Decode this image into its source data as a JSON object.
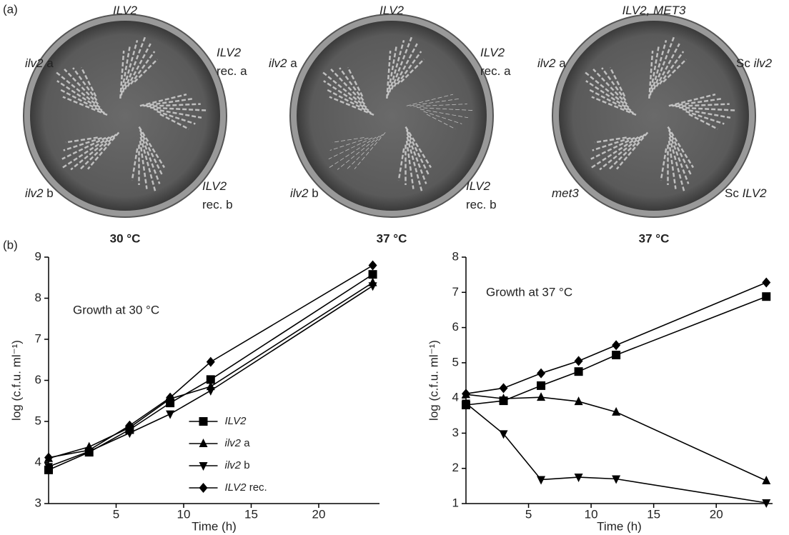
{
  "panel_a": {
    "label": "(a)",
    "plates": [
      {
        "labels": [
          {
            "lines": [
              "ILV2"
            ]
          },
          {
            "lines": [
              "ilv2 a"
            ]
          },
          {
            "lines": [
              "ILV2",
              "rec. a"
            ]
          },
          {
            "lines": [
              "ilv2 b"
            ]
          },
          {
            "lines": [
              "ILV2",
              "rec. b"
            ]
          }
        ],
        "temperature": "30 °C"
      },
      {
        "labels": [
          {
            "lines": [
              "ILV2"
            ]
          },
          {
            "lines": [
              "ilv2 a"
            ]
          },
          {
            "lines": [
              "ILV2",
              "rec. a"
            ]
          },
          {
            "lines": [
              "ilv2 b"
            ]
          },
          {
            "lines": [
              "ILV2",
              "rec. b"
            ]
          }
        ],
        "temperature": "37 °C"
      },
      {
        "labels": [
          {
            "lines": [
              "ILV2, MET3"
            ]
          },
          {
            "lines": [
              "ilv2 a"
            ]
          },
          {
            "lines": [
              "Sc ilv2"
            ]
          },
          {
            "lines": [
              "met3"
            ]
          },
          {
            "lines": [
              "Sc ILV2"
            ]
          }
        ],
        "temperature": "37 °C"
      }
    ]
  },
  "panel_b": {
    "label": "(b)"
  },
  "chart_data": [
    {
      "type": "line",
      "annotation": "Growth at 30 °C",
      "x_label": "Time (h)",
      "y_label": "log (c.f.u. ml⁻¹)",
      "x": [
        0,
        3,
        6,
        9,
        12,
        24
      ],
      "xlim": [
        0,
        24.5
      ],
      "xticks": [
        5,
        10,
        15,
        20
      ],
      "ylim": [
        3,
        9
      ],
      "yticks": [
        3,
        4,
        5,
        6,
        7,
        8,
        9
      ],
      "legend": "center",
      "series": [
        {
          "name": "ILV2",
          "color": "#000000",
          "marker": "square",
          "values": [
            3.82,
            4.25,
            4.8,
            5.45,
            6.02,
            8.58
          ]
        },
        {
          "name": "ilv2 a",
          "color": "#000000",
          "marker": "triangle",
          "values": [
            4.1,
            4.38,
            4.85,
            5.55,
            5.85,
            8.38
          ]
        },
        {
          "name": "ilv2 b",
          "color": "#000000",
          "marker": "triangle-down",
          "values": [
            3.9,
            4.27,
            4.72,
            5.18,
            5.75,
            8.3
          ]
        },
        {
          "name": "ILV2 rec.",
          "color": "#000000",
          "marker": "diamond",
          "values": [
            4.12,
            4.3,
            4.9,
            5.58,
            6.45,
            8.8
          ]
        }
      ]
    },
    {
      "type": "line",
      "annotation": "Growth at 37 °C",
      "x_label": "Time (h)",
      "y_label": "log (c.f.u. ml⁻¹)",
      "x": [
        0,
        3,
        6,
        9,
        12,
        24
      ],
      "xlim": [
        0,
        24.5
      ],
      "xticks": [
        5,
        10,
        15,
        20
      ],
      "ylim": [
        1,
        8
      ],
      "yticks": [
        1,
        2,
        3,
        4,
        5,
        6,
        7,
        8
      ],
      "series": [
        {
          "color": "#000000",
          "marker": "square",
          "values": [
            3.8,
            3.92,
            4.35,
            4.75,
            5.22,
            6.88
          ]
        },
        {
          "color": "#000000",
          "marker": "triangle",
          "values": [
            4.1,
            3.98,
            4.02,
            3.9,
            3.6,
            1.65
          ]
        },
        {
          "color": "#000000",
          "marker": "triangle-down",
          "values": [
            3.85,
            2.98,
            1.68,
            1.75,
            1.7,
            1.02
          ]
        },
        {
          "color": "#000000",
          "marker": "diamond",
          "values": [
            4.12,
            4.28,
            4.7,
            5.05,
            5.5,
            7.28
          ]
        }
      ]
    }
  ]
}
